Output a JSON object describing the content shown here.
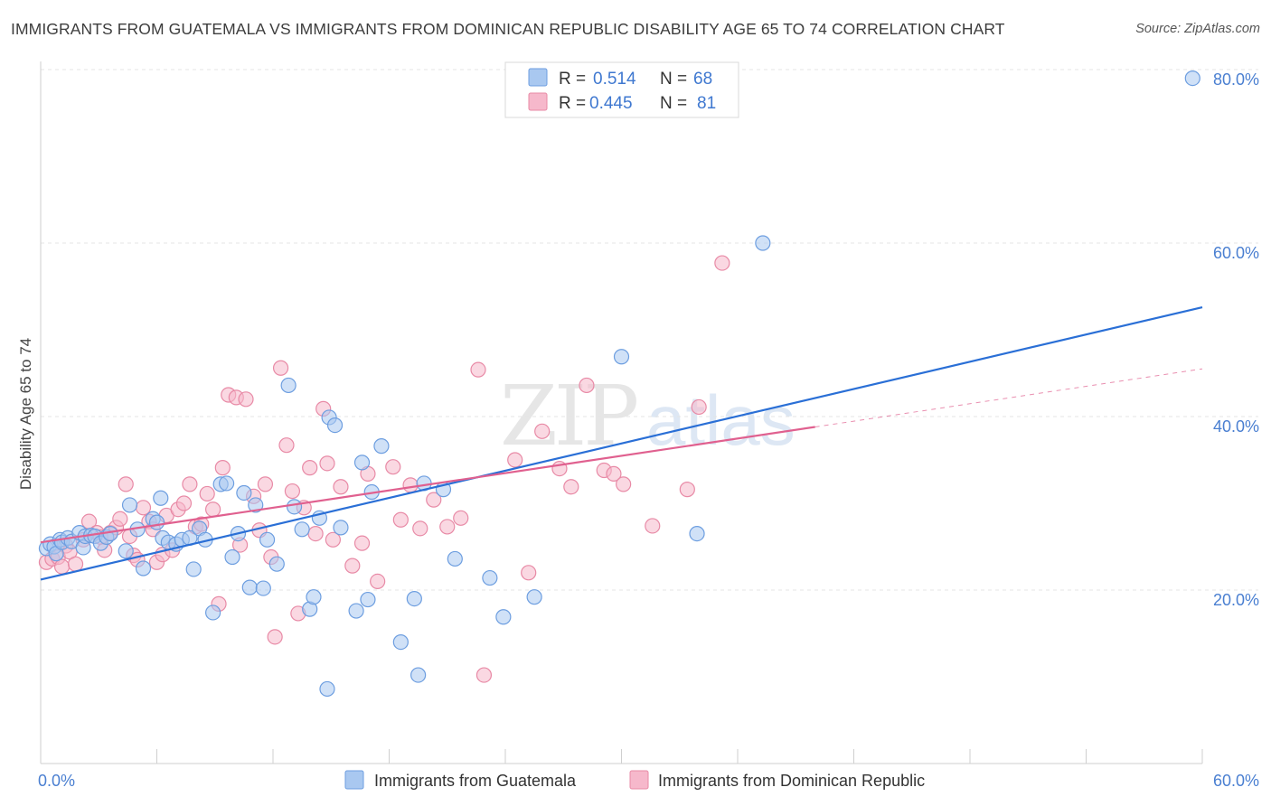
{
  "title": "IMMIGRANTS FROM GUATEMALA VS IMMIGRANTS FROM DOMINICAN REPUBLIC DISABILITY AGE 65 TO 74 CORRELATION CHART",
  "source": "Source: ZipAtlas.com",
  "watermark": {
    "zip": "ZIP",
    "atlas": "atlas"
  },
  "legend": {
    "rows": [
      {
        "r_label": "R =",
        "r_value": "0.514",
        "n_label": "N =",
        "n_value": "68",
        "color": "#a9c8f0"
      },
      {
        "r_label": "R =",
        "r_value": "0.445",
        "n_label": "N =",
        "n_value": "81",
        "color": "#f6b8cb"
      }
    ]
  },
  "colors": {
    "blue_fill": "#a9c8f0",
    "blue_stroke": "#6d9ee0",
    "blue_line": "#2a6fd6",
    "pink_fill": "#f6b8cb",
    "pink_stroke": "#e88aa6",
    "pink_line": "#e0608f",
    "grid": "#e4e4e4",
    "tick_label": "#4a7fd1"
  },
  "chart_data": {
    "type": "scatter",
    "xlabel": "",
    "ylabel": "Disability Age 65 to 74",
    "xlim": [
      0,
      60
    ],
    "ylim": [
      0,
      82
    ],
    "x_tick_labels": [
      {
        "value": 0,
        "label": "0.0%"
      },
      {
        "value": 60,
        "label": "60.0%"
      }
    ],
    "y_tick_labels": [
      {
        "value": 20,
        "label": "20.0%"
      },
      {
        "value": 40,
        "label": "40.0%"
      },
      {
        "value": 60,
        "label": "60.0%"
      },
      {
        "value": 80,
        "label": "80.0%"
      }
    ],
    "grid": true,
    "legend_position": "top-center",
    "series": [
      {
        "name": "Immigrants from Guatemala",
        "color": "#a9c8f0",
        "trend": {
          "x": [
            0,
            60
          ],
          "y": [
            21.2,
            52.6
          ]
        },
        "points": [
          [
            0.3,
            24.8
          ],
          [
            0.5,
            25.3
          ],
          [
            0.7,
            25.0
          ],
          [
            0.8,
            24.2
          ],
          [
            1.0,
            25.8
          ],
          [
            1.1,
            25.5
          ],
          [
            1.4,
            26.0
          ],
          [
            1.6,
            25.6
          ],
          [
            2.0,
            26.6
          ],
          [
            2.2,
            24.9
          ],
          [
            2.3,
            26.2
          ],
          [
            2.6,
            26.3
          ],
          [
            2.8,
            26.2
          ],
          [
            3.1,
            25.4
          ],
          [
            3.4,
            26.1
          ],
          [
            3.6,
            26.5
          ],
          [
            4.4,
            24.5
          ],
          [
            4.6,
            29.8
          ],
          [
            5.0,
            27.0
          ],
          [
            5.3,
            22.5
          ],
          [
            5.8,
            28.2
          ],
          [
            6.0,
            27.8
          ],
          [
            6.2,
            30.6
          ],
          [
            6.3,
            26.0
          ],
          [
            6.6,
            25.5
          ],
          [
            7.0,
            25.3
          ],
          [
            7.3,
            25.8
          ],
          [
            7.7,
            26.0
          ],
          [
            7.9,
            22.4
          ],
          [
            8.2,
            27.1
          ],
          [
            8.5,
            25.8
          ],
          [
            8.9,
            17.4
          ],
          [
            9.3,
            32.2
          ],
          [
            9.6,
            32.3
          ],
          [
            9.9,
            23.8
          ],
          [
            10.2,
            26.5
          ],
          [
            10.5,
            31.2
          ],
          [
            10.8,
            20.3
          ],
          [
            11.1,
            29.8
          ],
          [
            11.5,
            20.2
          ],
          [
            11.7,
            25.8
          ],
          [
            12.2,
            23.0
          ],
          [
            12.8,
            43.6
          ],
          [
            13.1,
            29.6
          ],
          [
            13.5,
            27.0
          ],
          [
            13.9,
            17.8
          ],
          [
            14.1,
            19.2
          ],
          [
            14.4,
            28.3
          ],
          [
            14.9,
            39.9
          ],
          [
            15.2,
            39.0
          ],
          [
            15.5,
            27.2
          ],
          [
            16.3,
            17.6
          ],
          [
            16.6,
            34.7
          ],
          [
            16.9,
            18.9
          ],
          [
            17.1,
            31.3
          ],
          [
            17.6,
            36.6
          ],
          [
            14.8,
            8.6
          ],
          [
            18.6,
            14.0
          ],
          [
            19.3,
            19.0
          ],
          [
            19.5,
            10.2
          ],
          [
            19.8,
            32.3
          ],
          [
            20.8,
            31.6
          ],
          [
            21.4,
            23.6
          ],
          [
            23.2,
            21.4
          ],
          [
            23.9,
            16.9
          ],
          [
            25.5,
            19.2
          ],
          [
            30.0,
            46.9
          ],
          [
            33.9,
            26.5
          ],
          [
            37.3,
            60.0
          ],
          [
            59.5,
            79.0
          ]
        ]
      },
      {
        "name": "Immigrants from Dominican Republic",
        "color": "#f6b8cb",
        "trend": {
          "x": [
            0,
            40
          ],
          "y": [
            25.5,
            38.8
          ]
        },
        "trend_ext": {
          "x": [
            40,
            60
          ],
          "y": [
            38.8,
            45.5
          ]
        },
        "points": [
          [
            0.3,
            23.2
          ],
          [
            0.6,
            23.6
          ],
          [
            0.9,
            23.8
          ],
          [
            1.1,
            22.7
          ],
          [
            1.3,
            25.1
          ],
          [
            1.5,
            24.4
          ],
          [
            1.8,
            23.0
          ],
          [
            2.2,
            25.8
          ],
          [
            2.5,
            27.9
          ],
          [
            2.9,
            26.6
          ],
          [
            3.1,
            26.1
          ],
          [
            3.3,
            24.6
          ],
          [
            3.6,
            26.6
          ],
          [
            3.9,
            27.2
          ],
          [
            4.1,
            28.2
          ],
          [
            4.4,
            32.2
          ],
          [
            4.6,
            26.2
          ],
          [
            4.8,
            24.0
          ],
          [
            5.0,
            23.5
          ],
          [
            5.3,
            29.5
          ],
          [
            5.6,
            27.9
          ],
          [
            5.8,
            27.0
          ],
          [
            6.0,
            23.2
          ],
          [
            6.3,
            24.1
          ],
          [
            6.5,
            28.6
          ],
          [
            6.8,
            24.6
          ],
          [
            7.1,
            29.3
          ],
          [
            7.4,
            30.0
          ],
          [
            7.7,
            32.2
          ],
          [
            8.0,
            27.3
          ],
          [
            8.3,
            27.6
          ],
          [
            8.6,
            31.1
          ],
          [
            8.9,
            29.3
          ],
          [
            9.2,
            18.4
          ],
          [
            9.4,
            34.1
          ],
          [
            9.7,
            42.5
          ],
          [
            10.1,
            42.2
          ],
          [
            10.3,
            25.2
          ],
          [
            10.6,
            42.0
          ],
          [
            11.0,
            30.8
          ],
          [
            11.3,
            26.9
          ],
          [
            11.6,
            32.2
          ],
          [
            11.9,
            23.8
          ],
          [
            12.1,
            14.6
          ],
          [
            12.4,
            45.6
          ],
          [
            12.7,
            36.7
          ],
          [
            13.0,
            31.4
          ],
          [
            13.3,
            17.3
          ],
          [
            13.6,
            29.5
          ],
          [
            13.9,
            34.1
          ],
          [
            14.2,
            26.5
          ],
          [
            14.6,
            40.9
          ],
          [
            14.8,
            34.6
          ],
          [
            15.1,
            25.8
          ],
          [
            15.5,
            31.9
          ],
          [
            16.1,
            22.8
          ],
          [
            16.6,
            25.4
          ],
          [
            16.9,
            33.4
          ],
          [
            17.4,
            21.0
          ],
          [
            18.2,
            34.2
          ],
          [
            18.6,
            28.1
          ],
          [
            19.1,
            32.1
          ],
          [
            19.6,
            27.1
          ],
          [
            20.3,
            30.4
          ],
          [
            21.0,
            27.3
          ],
          [
            21.7,
            28.3
          ],
          [
            22.6,
            45.4
          ],
          [
            22.9,
            10.2
          ],
          [
            24.5,
            35.0
          ],
          [
            25.2,
            22.0
          ],
          [
            25.9,
            38.3
          ],
          [
            26.8,
            34.0
          ],
          [
            27.4,
            31.9
          ],
          [
            28.2,
            43.6
          ],
          [
            29.1,
            33.8
          ],
          [
            29.6,
            33.4
          ],
          [
            30.1,
            32.2
          ],
          [
            31.6,
            27.4
          ],
          [
            33.4,
            31.6
          ],
          [
            34.0,
            41.1
          ],
          [
            35.2,
            57.7
          ]
        ]
      }
    ]
  },
  "bottom_legend": [
    {
      "label": "Immigrants from Guatemala",
      "color": "#a9c8f0"
    },
    {
      "label": "Immigrants from Dominican Republic",
      "color": "#f6b8cb"
    }
  ]
}
